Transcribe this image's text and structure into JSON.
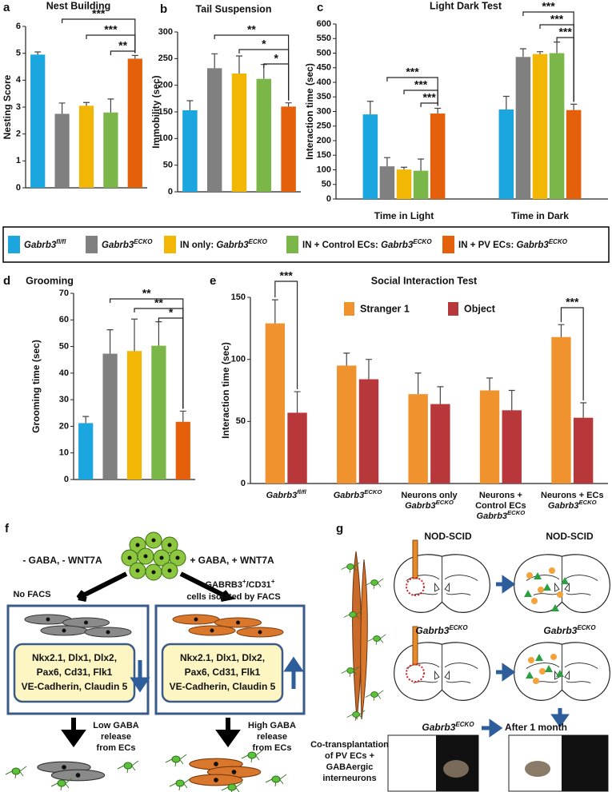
{
  "chart_data": [
    {
      "type": "bar",
      "panel": "a",
      "title": "Nest Building",
      "ylabel": "Nesting Score",
      "values": [
        4.95,
        2.75,
        3.05,
        2.8,
        4.8
      ],
      "errors": [
        0.1,
        0.4,
        0.12,
        0.5,
        0.12
      ],
      "ylim": [
        0,
        6
      ],
      "yticks": [
        0,
        1,
        2,
        3,
        4,
        5,
        6
      ],
      "brackets": [
        "***",
        "***",
        "**"
      ]
    },
    {
      "type": "bar",
      "panel": "b",
      "title": "Tail Suspension",
      "ylabel": "Immobility (sec)",
      "values": [
        153,
        232,
        222,
        212,
        160
      ],
      "errors": [
        18,
        27,
        33,
        27,
        7
      ],
      "ylim": [
        0,
        300
      ],
      "yticks": [
        0,
        50,
        100,
        150,
        200,
        250,
        300
      ],
      "brackets": [
        "**",
        "*",
        "*"
      ]
    },
    {
      "type": "bar",
      "panel": "c",
      "title": "Light Dark Test",
      "ylabel": "Interaction time (sec)",
      "categories": [
        "Time in Light",
        "Time in Dark"
      ],
      "series": [
        {
          "values": [
            290,
            307
          ],
          "errors": [
            45,
            45
          ]
        },
        {
          "values": [
            112,
            487
          ],
          "errors": [
            30,
            28
          ]
        },
        {
          "values": [
            101,
            497
          ],
          "errors": [
            8,
            8
          ]
        },
        {
          "values": [
            97,
            500
          ],
          "errors": [
            40,
            38
          ]
        },
        {
          "values": [
            293,
            305
          ],
          "errors": [
            18,
            20
          ]
        }
      ],
      "ylim": [
        0,
        600
      ],
      "yticks": [
        0,
        50,
        100,
        150,
        200,
        250,
        300,
        350,
        400,
        450,
        500,
        550,
        600
      ],
      "brackets": [
        [
          "***",
          "***",
          "***"
        ],
        [
          "***",
          "***",
          "***"
        ]
      ]
    },
    {
      "type": "bar",
      "panel": "d",
      "title": "Grooming",
      "ylabel": "Grooming time (sec)",
      "values": [
        21.2,
        47.3,
        48.3,
        50.3,
        21.7
      ],
      "errors": [
        2.5,
        9,
        12,
        9,
        4
      ],
      "ylim": [
        0,
        70
      ],
      "yticks": [
        0,
        10,
        20,
        30,
        40,
        50,
        60,
        70
      ],
      "brackets": [
        "**",
        "**",
        "*"
      ]
    },
    {
      "type": "bar",
      "panel": "e",
      "title": "Social Interaction Test",
      "ylabel": "Interaction time (sec)",
      "categories": [
        {
          "gene": "Gabrb3",
          "sup": "fl/fl"
        },
        {
          "gene": "Gabrb3",
          "sup": "ECKO"
        },
        {
          "lines": [
            "Neurons only"
          ],
          "gene": "Gabrb3",
          "sup": "ECKO"
        },
        {
          "lines": [
            "Neurons +",
            "Control ECs"
          ],
          "gene": "Gabrb3",
          "sup": "ECKO"
        },
        {
          "lines": [
            "Neurons + ECs"
          ],
          "gene": "Gabrb3",
          "sup": "ECKO"
        }
      ],
      "series": [
        {
          "name": "Stranger 1",
          "color": "#f0922e",
          "values": [
            129,
            95,
            72,
            75,
            118
          ],
          "errors": [
            19,
            10,
            17,
            10,
            10
          ]
        },
        {
          "name": "Object",
          "color": "#b8373a",
          "values": [
            57,
            84,
            64,
            59,
            53
          ],
          "errors": [
            17,
            16,
            14,
            16,
            12
          ]
        }
      ],
      "ylim": [
        0,
        150
      ],
      "yticks": [
        0,
        50,
        100,
        150
      ],
      "brackets": [
        "***",
        "***"
      ]
    }
  ],
  "legend": {
    "entries": [
      {
        "gene": "Gabrb3",
        "sup": "fl/fl",
        "color": "#1ba6e0"
      },
      {
        "gene": "Gabrb3",
        "sup": "ECKO",
        "color": "#808080"
      },
      {
        "prefix": "IN only: ",
        "gene": "Gabrb3",
        "sup": "ECKO",
        "color": "#f2b705"
      },
      {
        "prefix": "IN + Control ECs: ",
        "gene": "Gabrb3",
        "sup": "ECKO",
        "color": "#7ab648"
      },
      {
        "prefix": "IN + PV ECs: ",
        "gene": "Gabrb3",
        "sup": "ECKO",
        "color": "#e5600a"
      }
    ]
  },
  "panel_f": {
    "label": "f",
    "left_condition": "- GABA, - WNT7A",
    "right_condition": "+ GABA, + WNT7A",
    "left_sort": "No FACS",
    "right_sort": {
      "parts": [
        "GABRB3",
        "+",
        "/CD31",
        "+"
      ],
      "line2": "cells isolated by FACS"
    },
    "markers": [
      "Nkx2.1, Dlx1, Dlx2,",
      "Pax6, Cd31, Flk1",
      "VE-Cadherin, Claudin 5"
    ],
    "left_outcome": [
      "Low GABA",
      "release",
      "from ECs"
    ],
    "right_outcome": [
      "High GABA",
      "release",
      "from ECs"
    ]
  },
  "panel_g": {
    "label": "g",
    "top_left": "NOD-SCID",
    "top_right": "NOD-SCID",
    "mid_left": {
      "gene": "Gabrb3",
      "sup": "ECKO"
    },
    "mid_right": {
      "gene": "Gabrb3",
      "sup": "ECKO"
    },
    "bottom": {
      "gene": "Gabrb3",
      "sup": "ECKO"
    },
    "after": "After 1 month",
    "note": [
      "Co-transplantation",
      "of PV ECs +",
      "GABAergic",
      "interneurons"
    ]
  }
}
